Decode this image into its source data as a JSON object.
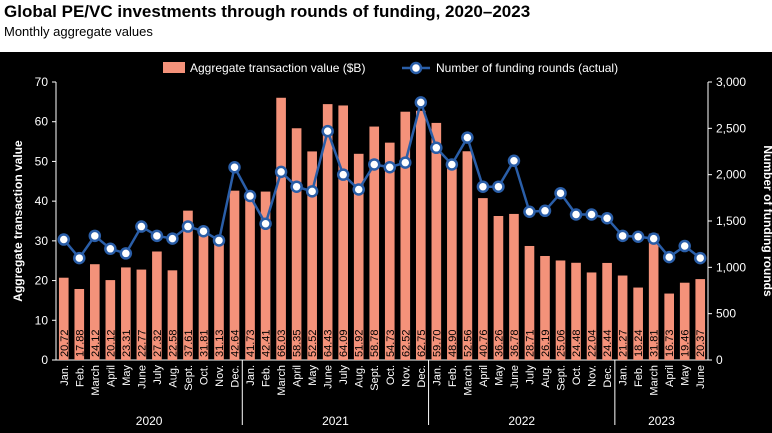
{
  "title": "Global PE/VC investments through rounds of funding, 2020–2023",
  "subtitle": "Monthly aggregate values",
  "chart_data": {
    "type": "bar+line",
    "categories": [
      "Jan.",
      "Feb.",
      "March",
      "April",
      "May",
      "June",
      "July",
      "Aug.",
      "Sept.",
      "Oct.",
      "Nov.",
      "Dec.",
      "Jan.",
      "Feb.",
      "March",
      "April",
      "May",
      "June",
      "July",
      "Aug.",
      "Sept.",
      "Oct.",
      "Nov.",
      "Dec.",
      "Jan.",
      "Feb.",
      "March",
      "April",
      "May",
      "June",
      "July",
      "Aug.",
      "Sept.",
      "Oct.",
      "Nov.",
      "Dec.",
      "Jan.",
      "Feb.",
      "March",
      "April",
      "May",
      "June"
    ],
    "year_groups": [
      {
        "label": "2020",
        "count": 12
      },
      {
        "label": "2021",
        "count": 12
      },
      {
        "label": "2022",
        "count": 12
      },
      {
        "label": "2023",
        "count": 6
      }
    ],
    "series": [
      {
        "name": "Aggregate transaction value ($B)",
        "type": "bar",
        "axis": "left",
        "color": "#f4927a",
        "values": [
          20.72,
          17.88,
          24.12,
          20.12,
          23.31,
          22.77,
          27.32,
          22.58,
          37.61,
          31.81,
          31.13,
          42.64,
          41.73,
          42.41,
          66.03,
          58.35,
          52.52,
          64.43,
          64.09,
          51.92,
          58.78,
          54.73,
          62.52,
          62.75,
          59.7,
          48.9,
          52.56,
          40.76,
          36.26,
          36.78,
          28.71,
          26.19,
          25.06,
          24.48,
          22.04,
          24.44,
          21.27,
          18.24,
          31.81,
          16.73,
          19.46,
          20.37
        ],
        "labels": [
          "20.72",
          "17.88",
          "24.12",
          "20.12",
          "23.31",
          "22.77",
          "27.32",
          "22.58",
          "37.61",
          "31.81",
          "31.13",
          "42.64",
          "41.73",
          "42.41",
          "66.03",
          "58.35",
          "52.52",
          "64.43",
          "64.09",
          "51.92",
          "58.78",
          "54.73",
          "62.52",
          "62.75",
          "59.70",
          "48.90",
          "52.56",
          "40.76",
          "36.26",
          "36.78",
          "28.71",
          "26.19",
          "25.06",
          "24.48",
          "22.04",
          "24.44",
          "21.27",
          "18.24",
          "31.81",
          "16.73",
          "19.46",
          "20.37"
        ]
      },
      {
        "name": "Number of funding rounds (actual)",
        "type": "line",
        "axis": "right",
        "color": "#2a5ea8",
        "values": [
          1300,
          1100,
          1340,
          1200,
          1150,
          1440,
          1340,
          1310,
          1440,
          1390,
          1290,
          2080,
          1770,
          1470,
          2030,
          1870,
          1820,
          2470,
          2000,
          1840,
          2110,
          2080,
          2130,
          2780,
          2290,
          2110,
          2400,
          1870,
          1870,
          2150,
          1600,
          1610,
          1800,
          1570,
          1570,
          1530,
          1340,
          1330,
          1310,
          1110,
          1230,
          1100
        ]
      }
    ],
    "ylabel": "Aggregate transaction value",
    "y2label": "Number of funding rounds",
    "ylim": [
      0,
      70
    ],
    "y2lim": [
      0,
      3000
    ],
    "yticks": [
      "0",
      "10",
      "20",
      "30",
      "40",
      "50",
      "60",
      "70"
    ],
    "y2ticks": [
      "0",
      "500",
      "1,000",
      "1,500",
      "2,000",
      "2,500",
      "3,000"
    ],
    "legend_position": "top-center",
    "grid": false
  }
}
